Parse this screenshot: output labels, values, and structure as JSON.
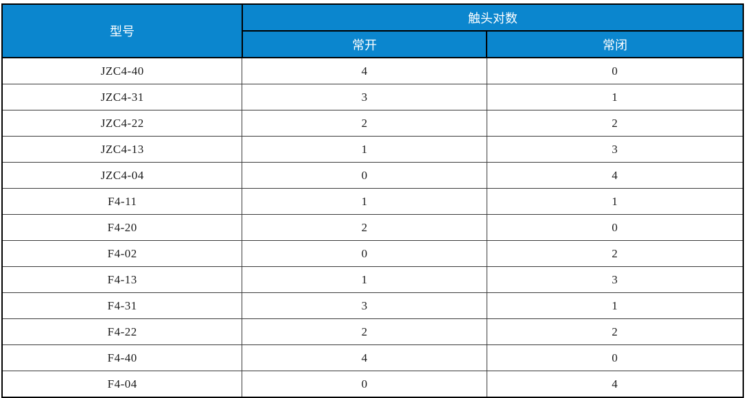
{
  "table": {
    "header": {
      "model": "型号",
      "contact_pairs_group": "触头对数",
      "normally_open": "常开",
      "normally_closed": "常闭"
    },
    "rows": [
      {
        "model": "JZC4-40",
        "no": "4",
        "nc": "0"
      },
      {
        "model": "JZC4-31",
        "no": "3",
        "nc": "1"
      },
      {
        "model": "JZC4-22",
        "no": "2",
        "nc": "2"
      },
      {
        "model": "JZC4-13",
        "no": "1",
        "nc": "3"
      },
      {
        "model": "JZC4-04",
        "no": "0",
        "nc": "4"
      },
      {
        "model": "F4-11",
        "no": "1",
        "nc": "1"
      },
      {
        "model": "F4-20",
        "no": "2",
        "nc": "0"
      },
      {
        "model": "F4-02",
        "no": "0",
        "nc": "2"
      },
      {
        "model": "F4-13",
        "no": "1",
        "nc": "3"
      },
      {
        "model": "F4-31",
        "no": "3",
        "nc": "1"
      },
      {
        "model": "F4-22",
        "no": "2",
        "nc": "2"
      },
      {
        "model": "F4-40",
        "no": "4",
        "nc": "0"
      },
      {
        "model": "F4-04",
        "no": "0",
        "nc": "4"
      }
    ]
  },
  "colors": {
    "header_bg": "#0B86CE",
    "header_text": "#FFFFFF",
    "body_text": "#1A1A1A",
    "border_outer": "#000000",
    "border_inner": "#3A3A3A"
  }
}
